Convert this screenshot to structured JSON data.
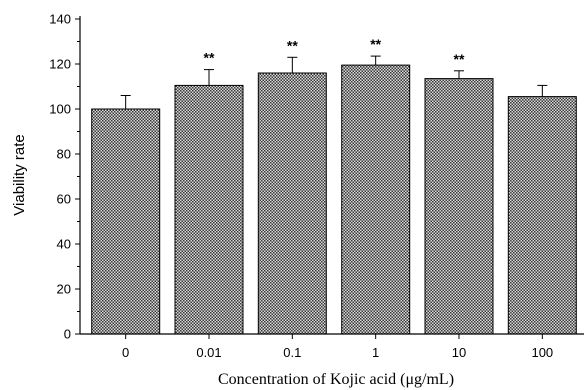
{
  "chart_data": {
    "type": "bar",
    "xlabel": "Concentration of Kojic acid (μg/mL)",
    "ylabel": "Viability rate",
    "categories": [
      "0",
      "0.01",
      "0.1",
      "1",
      "10",
      "100"
    ],
    "values": [
      100,
      110.5,
      116,
      119.5,
      113.5,
      105.5
    ],
    "errors": [
      6,
      7,
      7,
      4,
      3.5,
      5
    ],
    "annotations": [
      "",
      "**",
      "**",
      "**",
      "**",
      ""
    ],
    "ylim": [
      0,
      140
    ],
    "yticks": [
      0,
      20,
      40,
      60,
      80,
      100,
      120,
      140
    ],
    "grid": false,
    "bar_fill": "crosshatch-gray",
    "bar_color": "#b8b8b8",
    "edge_color": "#000000"
  }
}
